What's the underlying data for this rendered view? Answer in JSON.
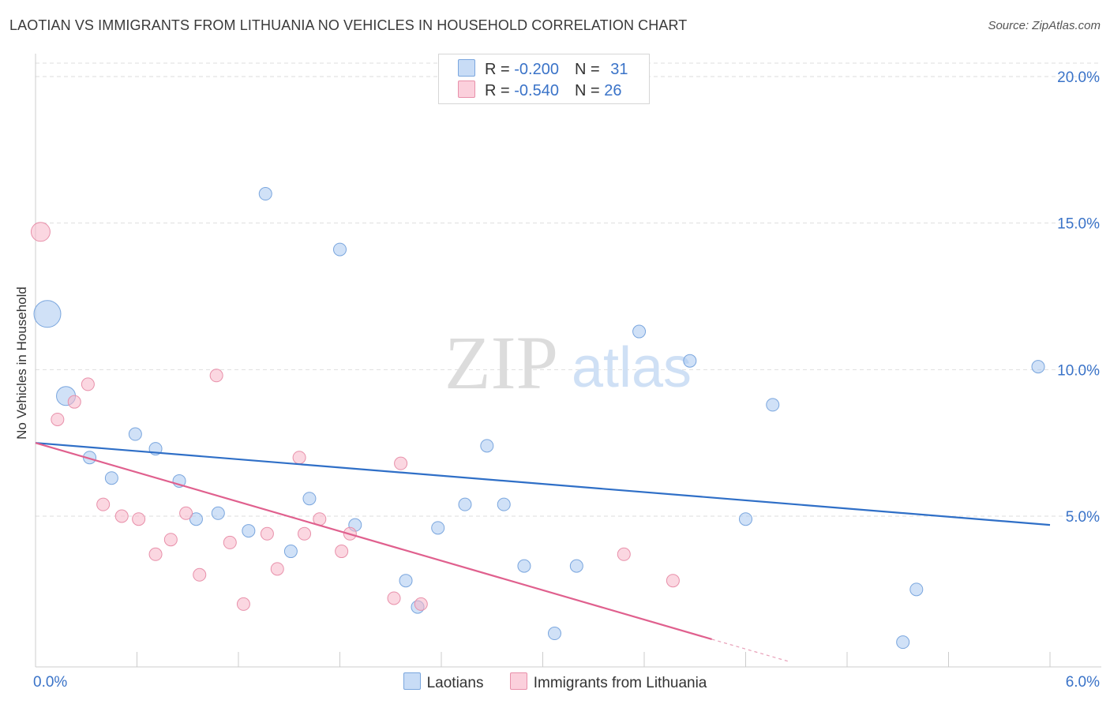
{
  "header": {
    "title": "LAOTIAN VS IMMIGRANTS FROM LITHUANIA NO VEHICLES IN HOUSEHOLD CORRELATION CHART",
    "source": "Source: ZipAtlas.com"
  },
  "watermark": {
    "zip": "ZIP",
    "atlas": "atlas"
  },
  "legend_box": {
    "rows": [
      {
        "r_label": "R = ",
        "r_value": "-0.200",
        "n_label": "N = ",
        "n_value": "31",
        "color": "#a9c8f0"
      },
      {
        "r_label": "R = ",
        "r_value": "-0.540",
        "n_label": "N = ",
        "n_value": "26",
        "color": "#f7b6c8"
      }
    ]
  },
  "chart_data": {
    "type": "scatter",
    "title": "LAOTIAN VS IMMIGRANTS FROM LITHUANIA NO VEHICLES IN HOUSEHOLD CORRELATION CHART",
    "xlabel": "",
    "ylabel": "No Vehicles in Household",
    "xlim": [
      0,
      6
    ],
    "ylim": [
      0,
      20.5
    ],
    "x_tick_labels": [
      "0.0%",
      "6.0%"
    ],
    "y_ticks": [
      5,
      10,
      15,
      20
    ],
    "y_tick_labels": [
      "5.0%",
      "10.0%",
      "15.0%",
      "20.0%"
    ],
    "grid": true,
    "legend_position": "bottom",
    "series": [
      {
        "name": "Laotians",
        "color": "#a9c8f0",
        "stroke": "#7aa6de",
        "line_color": "#2f6fc7",
        "points": [
          {
            "x": 0.07,
            "y": 11.9,
            "s": 3
          },
          {
            "x": 0.18,
            "y": 9.1,
            "s": 2
          },
          {
            "x": 0.32,
            "y": 7.0,
            "s": 1
          },
          {
            "x": 0.45,
            "y": 6.3,
            "s": 1
          },
          {
            "x": 0.59,
            "y": 7.8,
            "s": 1
          },
          {
            "x": 0.71,
            "y": 7.3,
            "s": 1
          },
          {
            "x": 0.85,
            "y": 6.2,
            "s": 1
          },
          {
            "x": 0.95,
            "y": 4.9,
            "s": 1
          },
          {
            "x": 1.08,
            "y": 5.1,
            "s": 1
          },
          {
            "x": 1.26,
            "y": 4.5,
            "s": 1
          },
          {
            "x": 1.36,
            "y": 16.0,
            "s": 1
          },
          {
            "x": 1.51,
            "y": 3.8,
            "s": 1
          },
          {
            "x": 1.62,
            "y": 5.6,
            "s": 1
          },
          {
            "x": 1.8,
            "y": 14.1,
            "s": 1
          },
          {
            "x": 1.89,
            "y": 4.7,
            "s": 1
          },
          {
            "x": 2.19,
            "y": 2.8,
            "s": 1
          },
          {
            "x": 2.26,
            "y": 1.9,
            "s": 1
          },
          {
            "x": 2.38,
            "y": 4.6,
            "s": 1
          },
          {
            "x": 2.54,
            "y": 5.4,
            "s": 1
          },
          {
            "x": 2.67,
            "y": 7.4,
            "s": 1
          },
          {
            "x": 2.77,
            "y": 5.4,
            "s": 1
          },
          {
            "x": 2.89,
            "y": 3.3,
            "s": 1
          },
          {
            "x": 3.07,
            "y": 1.0,
            "s": 1
          },
          {
            "x": 3.2,
            "y": 3.3,
            "s": 1
          },
          {
            "x": 3.57,
            "y": 11.3,
            "s": 1
          },
          {
            "x": 3.87,
            "y": 10.3,
            "s": 1
          },
          {
            "x": 4.2,
            "y": 4.9,
            "s": 1
          },
          {
            "x": 4.36,
            "y": 8.8,
            "s": 1
          },
          {
            "x": 5.13,
            "y": 0.7,
            "s": 1
          },
          {
            "x": 5.21,
            "y": 2.5,
            "s": 1
          },
          {
            "x": 5.93,
            "y": 10.1,
            "s": 1
          }
        ],
        "trend": {
          "x": [
            0,
            6
          ],
          "y": [
            7.5,
            4.7
          ]
        }
      },
      {
        "name": "Immigrants from Lithuania",
        "color": "#f7b6c8",
        "stroke": "#e890aa",
        "line_color": "#e0608e",
        "points": [
          {
            "x": 0.03,
            "y": 14.7,
            "s": 2
          },
          {
            "x": 0.13,
            "y": 8.3,
            "s": 1
          },
          {
            "x": 0.23,
            "y": 8.9,
            "s": 1
          },
          {
            "x": 0.31,
            "y": 9.5,
            "s": 1
          },
          {
            "x": 0.4,
            "y": 5.4,
            "s": 1
          },
          {
            "x": 0.51,
            "y": 5.0,
            "s": 1
          },
          {
            "x": 0.61,
            "y": 4.9,
            "s": 1
          },
          {
            "x": 0.71,
            "y": 3.7,
            "s": 1
          },
          {
            "x": 0.8,
            "y": 4.2,
            "s": 1
          },
          {
            "x": 0.89,
            "y": 5.1,
            "s": 1
          },
          {
            "x": 0.97,
            "y": 3.0,
            "s": 1
          },
          {
            "x": 1.07,
            "y": 9.8,
            "s": 1
          },
          {
            "x": 1.15,
            "y": 4.1,
            "s": 1
          },
          {
            "x": 1.23,
            "y": 2.0,
            "s": 1
          },
          {
            "x": 1.37,
            "y": 4.4,
            "s": 1
          },
          {
            "x": 1.43,
            "y": 3.2,
            "s": 1
          },
          {
            "x": 1.56,
            "y": 7.0,
            "s": 1
          },
          {
            "x": 1.59,
            "y": 4.4,
            "s": 1
          },
          {
            "x": 1.68,
            "y": 4.9,
            "s": 1
          },
          {
            "x": 1.81,
            "y": 3.8,
            "s": 1
          },
          {
            "x": 1.86,
            "y": 4.4,
            "s": 1
          },
          {
            "x": 2.12,
            "y": 2.2,
            "s": 1
          },
          {
            "x": 2.16,
            "y": 6.8,
            "s": 1
          },
          {
            "x": 2.28,
            "y": 2.0,
            "s": 1
          },
          {
            "x": 3.48,
            "y": 3.7,
            "s": 1
          },
          {
            "x": 3.77,
            "y": 2.8,
            "s": 1
          }
        ],
        "trend": {
          "x": [
            0,
            4.0
          ],
          "y": [
            7.5,
            0.8
          ]
        },
        "trend_dashed": {
          "x": [
            4.0,
            4.45
          ],
          "y": [
            0.8,
            0.05
          ]
        }
      }
    ]
  }
}
